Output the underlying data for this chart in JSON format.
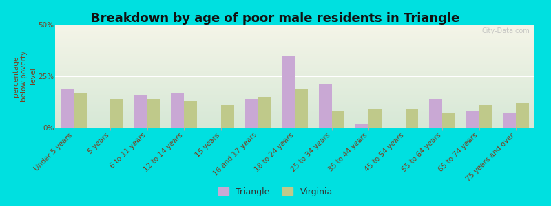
{
  "title": "Breakdown by age of poor male residents in Triangle",
  "categories": [
    "Under 5 years",
    "5 years",
    "6 to 11 years",
    "12 to 14 years",
    "15 years",
    "16 and 17 years",
    "18 to 24 years",
    "25 to 34 years",
    "35 to 44 years",
    "45 to 54 years",
    "55 to 64 years",
    "65 to 74 years",
    "75 years and over"
  ],
  "triangle_values": [
    19,
    0,
    16,
    17,
    0,
    14,
    35,
    21,
    2,
    0,
    14,
    8,
    7
  ],
  "virginia_values": [
    17,
    14,
    14,
    13,
    11,
    15,
    19,
    8,
    9,
    9,
    7,
    11,
    12
  ],
  "triangle_color": "#c9a8d4",
  "virginia_color": "#bfc98a",
  "plot_bg_top": "#f5f5e8",
  "plot_bg_bottom": "#ddeedd",
  "outer_background": "#00e0e0",
  "ylabel": "percentage\nbelow poverty\nlevel",
  "ylim": [
    0,
    50
  ],
  "yticks": [
    0,
    25,
    50
  ],
  "ytick_labels": [
    "0%",
    "25%",
    "50%"
  ],
  "bar_width": 0.35,
  "legend_labels": [
    "Triangle",
    "Virginia"
  ],
  "watermark": "City-Data.com",
  "title_fontsize": 13,
  "label_fontsize": 7.5,
  "ylabel_fontsize": 7.5
}
